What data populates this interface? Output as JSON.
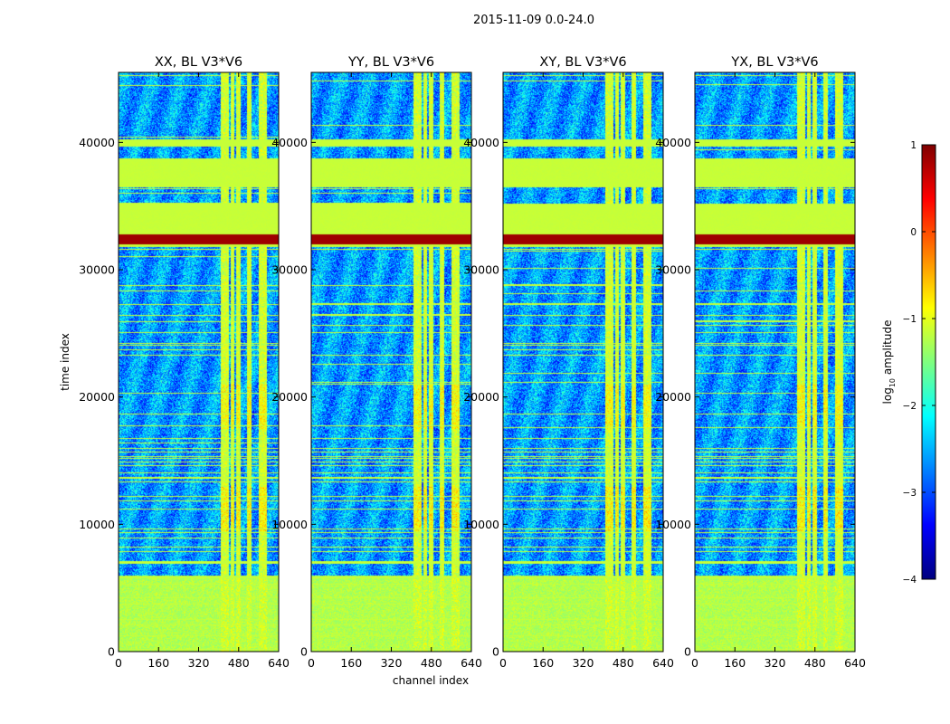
{
  "chart_data": {
    "type": "heatmap",
    "title": "2015-11-09 0.0-24.0",
    "xlabel": "channel index",
    "ylabel": "time index",
    "xlim": [
      0,
      640
    ],
    "ylim": [
      0,
      45500
    ],
    "xticks": [
      "0",
      "160",
      "320",
      "480",
      "640"
    ],
    "yticks": [
      "0",
      "10000",
      "20000",
      "30000",
      "40000"
    ],
    "panels": [
      {
        "title": "XX, BL V3*V6"
      },
      {
        "title": "YY, BL V3*V6"
      },
      {
        "title": "XY, BL V3*V6"
      },
      {
        "title": "YX, BL V3*V6"
      }
    ],
    "colorbar": {
      "label_prefix": "log",
      "label_sub": "10",
      "label_suffix": " amplitude",
      "min": -4,
      "max": 1,
      "ticks": [
        "1",
        "0",
        "−1",
        "−2",
        "−3",
        "−4"
      ],
      "stops": [
        "#00007f",
        "#0000ff",
        "#007fff",
        "#00ffff",
        "#7fff7f",
        "#ffff00",
        "#ff7f00",
        "#ff0000",
        "#7f0000"
      ]
    },
    "flagged_time_bands": [
      [
        31800,
        33500
      ],
      [
        39700,
        40300
      ],
      [
        36500,
        38800
      ],
      [
        33500,
        35200
      ]
    ],
    "saturated_time_bands": [
      [
        32000,
        32800
      ]
    ],
    "interference_channels": [
      [
        405,
        440
      ],
      [
        445,
        460
      ],
      [
        470,
        488
      ],
      [
        510,
        530
      ],
      [
        560,
        590
      ]
    ],
    "background_level": -2.6,
    "interference_level": -1.1
  }
}
